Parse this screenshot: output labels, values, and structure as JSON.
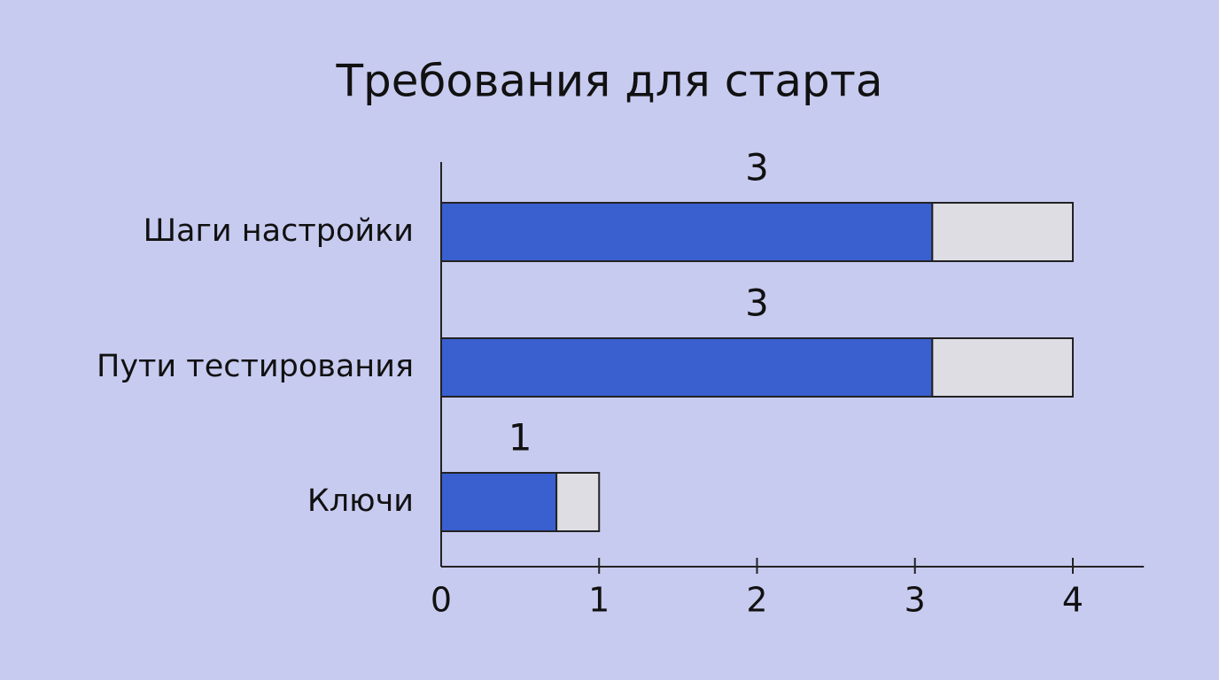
{
  "chart_data": {
    "type": "stacked-barh",
    "title": "Требования для старта",
    "categories": [
      "Шаги настройки",
      "Пути тестирования",
      "Ключи"
    ],
    "series": [
      {
        "color": "#3a5fcf",
        "values": [
          3.11,
          3.11,
          0.73
        ],
        "value_labels": [
          "3",
          "3",
          "1"
        ]
      },
      {
        "color": "#dddde3",
        "values": [
          0.89,
          0.89,
          0.27
        ]
      }
    ],
    "xlim": [
      0,
      4.45
    ],
    "xticks": [
      0,
      1,
      2,
      3,
      4
    ]
  }
}
